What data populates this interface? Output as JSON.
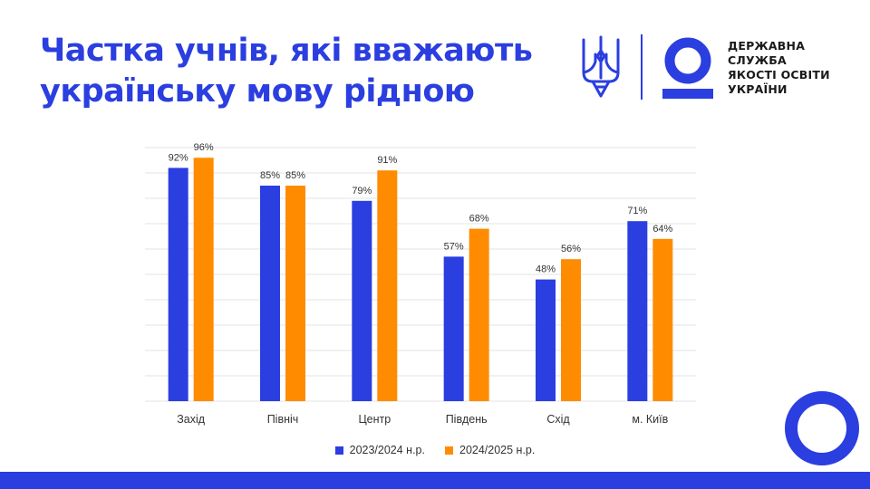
{
  "title_lines": [
    "Частка учнів, які вважають",
    "українську мову рідною"
  ],
  "organization": {
    "name_lines": [
      "ДЕРЖАВНА",
      "СЛУЖБА",
      "ЯКОСТІ ОСВІТИ",
      "УКРАЇНИ"
    ]
  },
  "colors": {
    "accent": "#2b3ee0",
    "series_2023": "#2b3ee0",
    "series_2024": "#ff8c00",
    "grid": "#e3e3e3"
  },
  "chart_data": {
    "type": "bar",
    "categories": [
      "Захід",
      "Північ",
      "Центр",
      "Південь",
      "Схід",
      "м. Київ"
    ],
    "series": [
      {
        "name": "2023/2024 н.р.",
        "values": [
          92,
          85,
          79,
          57,
          48,
          71
        ],
        "labels": [
          "92%",
          "85%",
          "79%",
          "57%",
          "48%",
          "71%"
        ]
      },
      {
        "name": "2024/2025 н.р.",
        "values": [
          96,
          85,
          91,
          68,
          56,
          64
        ],
        "labels": [
          "96%",
          "85%",
          "91%",
          "68%",
          "56%",
          "64%"
        ]
      }
    ],
    "ylim": [
      0,
      100
    ],
    "grid": true,
    "y_tick_labels_shown": false,
    "legend_position": "bottom-center"
  }
}
